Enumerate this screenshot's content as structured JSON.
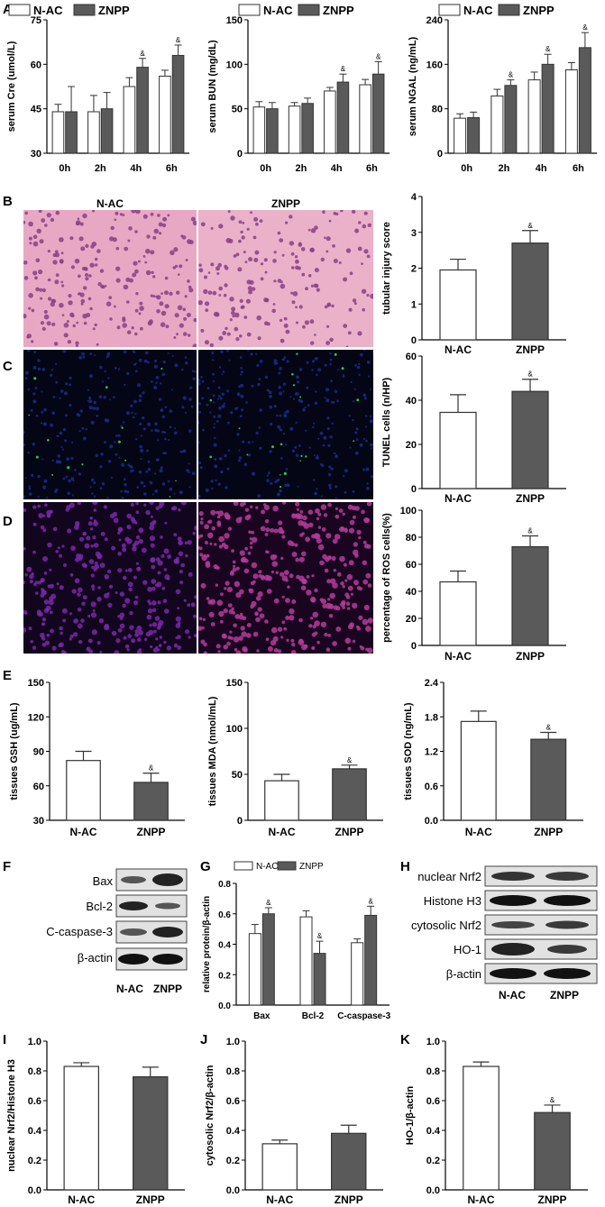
{
  "panels": {
    "A": "A",
    "B": "B",
    "C": "C",
    "D": "D",
    "E": "E",
    "F": "F",
    "G": "G",
    "H": "H",
    "I": "I",
    "J": "J",
    "K": "K"
  },
  "colors": {
    "nac": "#ffffff",
    "znpp": "#5a5a5a",
    "axis": "#000000"
  },
  "legend": {
    "nac": "N-AC",
    "znpp": "ZNPP"
  },
  "sig_mark": "&",
  "micrographs": {
    "he_nac_label": "N-AC",
    "he_znpp_label": "ZNPP"
  },
  "blot_f": {
    "rows": [
      "Bax",
      "Bcl-2",
      "C-caspase-3",
      "β-actin"
    ],
    "x_labels": [
      "N-AC",
      "ZNPP"
    ]
  },
  "blot_h": {
    "rows": [
      "nuclear Nrf2",
      "Histone H3",
      "cytosolic Nrf2",
      "HO-1",
      "β-actin"
    ],
    "x_labels": [
      "N-AC",
      "ZNPP"
    ]
  },
  "chart_data": [
    {
      "id": "A1",
      "type": "bar",
      "ylabel": "serum Cre (umol/L)",
      "categories": [
        "0h",
        "2h",
        "4h",
        "6h"
      ],
      "ylim": [
        30,
        75
      ],
      "yticks": [
        30,
        45,
        60,
        75
      ],
      "series": [
        {
          "name": "N-AC",
          "values": [
            44,
            44,
            52.5,
            56
          ],
          "errors": [
            2.5,
            5.5,
            3,
            2
          ]
        },
        {
          "name": "ZNPP",
          "values": [
            44,
            45,
            59,
            63
          ],
          "errors": [
            8.5,
            5.5,
            3,
            3.5
          ]
        }
      ],
      "sig": [
        false,
        false,
        true,
        true
      ]
    },
    {
      "id": "A2",
      "type": "bar",
      "ylabel": "serum BUN (mg/dL)",
      "categories": [
        "0h",
        "2h",
        "4h",
        "6h"
      ],
      "ylim": [
        0,
        150
      ],
      "yticks": [
        0,
        50,
        100,
        150
      ],
      "series": [
        {
          "name": "N-AC",
          "values": [
            52,
            53,
            70,
            77
          ],
          "errors": [
            6,
            4,
            4,
            6
          ]
        },
        {
          "name": "ZNPP",
          "values": [
            50,
            56,
            80,
            89
          ],
          "errors": [
            7,
            6,
            9,
            14
          ]
        }
      ],
      "sig": [
        false,
        false,
        true,
        true
      ]
    },
    {
      "id": "A3",
      "type": "bar",
      "ylabel": "serum NGAL (ng/mL)",
      "categories": [
        "0h",
        "2h",
        "4h",
        "6h"
      ],
      "ylim": [
        0,
        240
      ],
      "yticks": [
        0,
        80,
        160,
        240
      ],
      "series": [
        {
          "name": "N-AC",
          "values": [
            63,
            103,
            132,
            150
          ],
          "errors": [
            8,
            12,
            14,
            13
          ]
        },
        {
          "name": "ZNPP",
          "values": [
            64,
            122,
            160,
            190
          ],
          "errors": [
            10,
            10,
            18,
            27
          ]
        }
      ],
      "sig": [
        false,
        true,
        true,
        true
      ]
    },
    {
      "id": "B",
      "type": "bar",
      "ylabel": "tubular injury score",
      "categories": [
        "N-AC",
        "ZNPP"
      ],
      "ylim": [
        0,
        4
      ],
      "yticks": [
        0,
        1,
        2,
        3,
        4
      ],
      "values": [
        1.95,
        2.7
      ],
      "errors": [
        0.3,
        0.35
      ],
      "sig": [
        false,
        true
      ]
    },
    {
      "id": "C",
      "type": "bar",
      "ylabel": "TUNEL cells (n/HP)",
      "categories": [
        "N-AC",
        "ZNPP"
      ],
      "ylim": [
        0,
        60
      ],
      "yticks": [
        0,
        20,
        40,
        60
      ],
      "values": [
        34.5,
        44
      ],
      "errors": [
        8,
        5.5
      ],
      "sig": [
        false,
        true
      ]
    },
    {
      "id": "D",
      "type": "bar",
      "ylabel": "percentage of ROS  cells(%)",
      "categories": [
        "N-AC",
        "ZNPP"
      ],
      "ylim": [
        0,
        100
      ],
      "yticks": [
        0,
        20,
        40,
        60,
        80,
        100
      ],
      "values": [
        47,
        73
      ],
      "errors": [
        8,
        8
      ],
      "sig": [
        false,
        true
      ]
    },
    {
      "id": "E1",
      "type": "bar",
      "ylabel": "tissues GSH (ug/mL)",
      "categories": [
        "N-AC",
        "ZNPP"
      ],
      "ylim": [
        30,
        150
      ],
      "yticks": [
        30,
        60,
        90,
        120,
        150
      ],
      "values": [
        82,
        63
      ],
      "errors": [
        8,
        8
      ],
      "sig": [
        false,
        true
      ]
    },
    {
      "id": "E2",
      "type": "bar",
      "ylabel": "tissues MDA (nmol/mL)",
      "categories": [
        "N-AC",
        "ZNPP"
      ],
      "ylim": [
        0,
        150
      ],
      "yticks": [
        0,
        50,
        100,
        150
      ],
      "values": [
        43,
        56
      ],
      "errors": [
        7,
        4
      ],
      "sig": [
        false,
        true
      ]
    },
    {
      "id": "E3",
      "type": "bar",
      "ylabel": "tissues SOD (ng/mL)",
      "categories": [
        "N-AC",
        "ZNPP"
      ],
      "ylim": [
        0,
        2.4
      ],
      "yticks": [
        0,
        0.6,
        1.2,
        1.8,
        2.4
      ],
      "values": [
        1.72,
        1.41
      ],
      "errors": [
        0.18,
        0.12
      ],
      "sig": [
        false,
        true
      ]
    },
    {
      "id": "G",
      "type": "bar",
      "ylabel": "relative protein/β-actin",
      "categories": [
        "Bax",
        "Bcl-2",
        "C-caspase-3"
      ],
      "ylim": [
        0,
        0.8
      ],
      "yticks": [
        0,
        0.2,
        0.4,
        0.6,
        0.8
      ],
      "series": [
        {
          "name": "N-AC",
          "values": [
            0.47,
            0.58,
            0.41
          ],
          "errors": [
            0.06,
            0.04,
            0.025
          ]
        },
        {
          "name": "ZNPP",
          "values": [
            0.6,
            0.34,
            0.59
          ],
          "errors": [
            0.04,
            0.08,
            0.06
          ]
        }
      ],
      "sig": [
        true,
        true,
        true
      ]
    },
    {
      "id": "I",
      "type": "bar",
      "ylabel": "nuclear Nrf2/Histone H3",
      "categories": [
        "N-AC",
        "ZNPP"
      ],
      "ylim": [
        0,
        1.0
      ],
      "yticks": [
        0.0,
        0.2,
        0.4,
        0.6,
        0.8,
        1.0
      ],
      "values": [
        0.83,
        0.76
      ],
      "errors": [
        0.025,
        0.065
      ],
      "sig": [
        false,
        false
      ]
    },
    {
      "id": "J",
      "type": "bar",
      "ylabel": "cytosolic Nrf2/β-actin",
      "categories": [
        "N-AC",
        "ZNPP"
      ],
      "ylim": [
        0,
        1.0
      ],
      "yticks": [
        0.0,
        0.2,
        0.4,
        0.6,
        0.8,
        1.0
      ],
      "values": [
        0.31,
        0.38
      ],
      "errors": [
        0.025,
        0.055
      ],
      "sig": [
        false,
        false
      ]
    },
    {
      "id": "K",
      "type": "bar",
      "ylabel": "HO-1/β-actin",
      "categories": [
        "N-AC",
        "ZNPP"
      ],
      "ylim": [
        0,
        1.0
      ],
      "yticks": [
        0.0,
        0.2,
        0.4,
        0.6,
        0.8,
        1.0
      ],
      "values": [
        0.83,
        0.52
      ],
      "errors": [
        0.03,
        0.05
      ],
      "sig": [
        false,
        true
      ]
    }
  ]
}
